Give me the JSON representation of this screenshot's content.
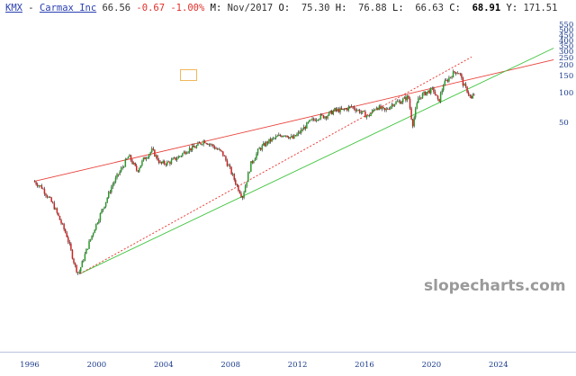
{
  "header": {
    "ticker": "KMX",
    "separator": " - ",
    "company": "Carmax Inc",
    "last": "66.56",
    "change": "-0.67",
    "change_pct": "-1.00%",
    "month_label": "M:",
    "month_value": "Nov/2017",
    "open_label": "O:",
    "open_value": "75.30",
    "high_label": "H:",
    "high_value": "76.88",
    "low_label": "L:",
    "low_value": "66.63",
    "close_label": "C:",
    "close_value": "68.91",
    "y_label": "Y:",
    "y_value": "171.51"
  },
  "watermark": "slopecharts.com",
  "colors": {
    "up": "#2a9a2a",
    "down": "#cc2222",
    "wick": "#111111",
    "resistance_line": "#e8413a",
    "support_line": "#3cc43c",
    "dotted_line": "#e8413a",
    "axis_text": "#1a3a8a",
    "marker_box": "#f0b85a"
  },
  "chart_data": {
    "type": "candlestick",
    "interval": "monthly",
    "y_scale": "log",
    "y_tick_labels": [
      "550",
      "500",
      "450",
      "400",
      "350",
      "300",
      "250",
      "200",
      "150",
      "100",
      "50"
    ],
    "x_tick_labels": [
      "1996",
      "2000",
      "2004",
      "2008",
      "2012",
      "2016",
      "2020",
      "2024"
    ],
    "x_range": [
      1995.5,
      2027.3
    ],
    "y_range": [
      0.0,
      550
    ],
    "price_anchors": [
      [
        1996.3,
        4.8
      ],
      [
        1996.8,
        4.0
      ],
      [
        1997.5,
        2.3
      ],
      [
        1998.3,
        0.9
      ],
      [
        1998.8,
        0.35
      ],
      [
        1999.0,
        0.28
      ],
      [
        1999.5,
        0.6
      ],
      [
        2000.0,
        1.2
      ],
      [
        2000.5,
        2.2
      ],
      [
        2001.0,
        4.2
      ],
      [
        2001.5,
        6.6
      ],
      [
        2002.0,
        10.4
      ],
      [
        2002.5,
        6.6
      ],
      [
        2002.9,
        9.5
      ],
      [
        2003.4,
        12.4
      ],
      [
        2003.9,
        8.2
      ],
      [
        2004.4,
        8.5
      ],
      [
        2005.0,
        10.2
      ],
      [
        2005.5,
        12.6
      ],
      [
        2006.0,
        13.8
      ],
      [
        2006.5,
        16.8
      ],
      [
        2007.0,
        14.3
      ],
      [
        2007.6,
        11.3
      ],
      [
        2008.0,
        7.3
      ],
      [
        2008.5,
        4.0
      ],
      [
        2008.8,
        3.0
      ],
      [
        2009.3,
        8.2
      ],
      [
        2009.8,
        12.9
      ],
      [
        2010.3,
        16.0
      ],
      [
        2010.8,
        18.4
      ],
      [
        2011.3,
        20.5
      ],
      [
        2011.8,
        17.8
      ],
      [
        2012.3,
        22.5
      ],
      [
        2012.8,
        29.6
      ],
      [
        2013.3,
        34.3
      ],
      [
        2013.8,
        35.8
      ],
      [
        2014.3,
        42.4
      ],
      [
        2014.8,
        42.4
      ],
      [
        2015.3,
        47.5
      ],
      [
        2015.8,
        41.1
      ],
      [
        2016.3,
        34.9
      ],
      [
        2016.8,
        47.5
      ],
      [
        2017.3,
        41.6
      ],
      [
        2017.8,
        52.5
      ],
      [
        2018.3,
        56.6
      ],
      [
        2018.7,
        64.5
      ],
      [
        2018.95,
        27.0
      ],
      [
        2019.3,
        61.2
      ],
      [
        2019.8,
        74.6
      ],
      [
        2020.2,
        79.9
      ],
      [
        2020.5,
        53.7
      ],
      [
        2020.8,
        93.4
      ],
      [
        2021.2,
        119.4
      ],
      [
        2021.5,
        139.6
      ],
      [
        2021.75,
        135.6
      ],
      [
        2022.0,
        91.3
      ],
      [
        2022.25,
        76.1
      ],
      [
        2022.45,
        58.4
      ],
      [
        2022.6,
        68.9
      ]
    ],
    "trendlines": [
      {
        "style": "solid",
        "color_key": "resistance_line",
        "from": [
          1996.3,
          4.8
        ],
        "to": [
          2027.3,
          200
        ]
      },
      {
        "style": "solid",
        "color_key": "support_line",
        "from": [
          1999.0,
          0.28
        ],
        "to": [
          2027.3,
          286
        ]
      },
      {
        "style": "dotted",
        "color_key": "dotted_line",
        "from": [
          1999.0,
          0.28
        ],
        "to": [
          2022.4,
          218
        ]
      }
    ],
    "annotation_box": {
      "x": 2001.5,
      "y": 130
    }
  }
}
